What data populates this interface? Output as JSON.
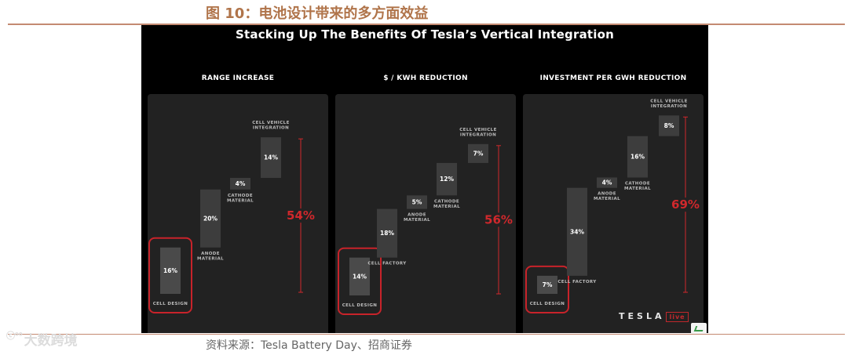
{
  "figure_title": "图 10：电池设计带来的多方面效益",
  "main_title": "Stacking Up The Benefits Of Tesla’s Vertical Integration",
  "source": "资料来源：Tesla Battery Day、招商证券",
  "watermark": "大数跨境",
  "watermark_mark": "ⓒ⁰⁰",
  "tesla_logo": "TESLA",
  "tesla_logo_suffix": "live",
  "colors": {
    "panel_bg": "#000000",
    "card_bg": "#222222",
    "step_bar": "#3d3d3d",
    "cell_design_bar": "#4a4a4a",
    "total": "#d0282c",
    "highlight_ring": "#c8232a",
    "title": "#b0744a",
    "rule": "#c48a72"
  },
  "chart_data": [
    {
      "type": "waterfall",
      "title": "RANGE INCREASE",
      "unit": "%",
      "steps": [
        {
          "label": "CELL DESIGN",
          "value": 16,
          "highlight": true
        },
        {
          "label": "ANODE MATERIAL",
          "value": 20
        },
        {
          "label": "CATHODE MATERIAL",
          "value": 4
        },
        {
          "label": "CELL VEHICLE INTEGRATION",
          "value": 14
        }
      ],
      "total": "54%",
      "ylim": [
        0,
        75
      ]
    },
    {
      "type": "waterfall",
      "title": "$ / KWH REDUCTION",
      "unit": "%",
      "steps": [
        {
          "label": "CELL DESIGN",
          "value": 14,
          "highlight": true
        },
        {
          "label": "CELL FACTORY",
          "value": 18
        },
        {
          "label": "ANODE MATERIAL",
          "value": 5
        },
        {
          "label": "CATHODE MATERIAL",
          "value": 12
        },
        {
          "label": "CELL VEHICLE INTEGRATION",
          "value": 7
        }
      ],
      "total": "56%",
      "ylim": [
        0,
        75
      ]
    },
    {
      "type": "waterfall",
      "title": "INVESTMENT PER GWH REDUCTION",
      "unit": "%",
      "steps": [
        {
          "label": "CELL DESIGN",
          "value": 7,
          "highlight": true
        },
        {
          "label": "CELL FACTORY",
          "value": 34
        },
        {
          "label": "ANODE MATERIAL",
          "value": 4
        },
        {
          "label": "CATHODE MATERIAL",
          "value": 16
        },
        {
          "label": "CELL VEHICLE INTEGRATION",
          "value": 8
        }
      ],
      "total": "69%",
      "ylim": [
        0,
        75
      ]
    }
  ]
}
